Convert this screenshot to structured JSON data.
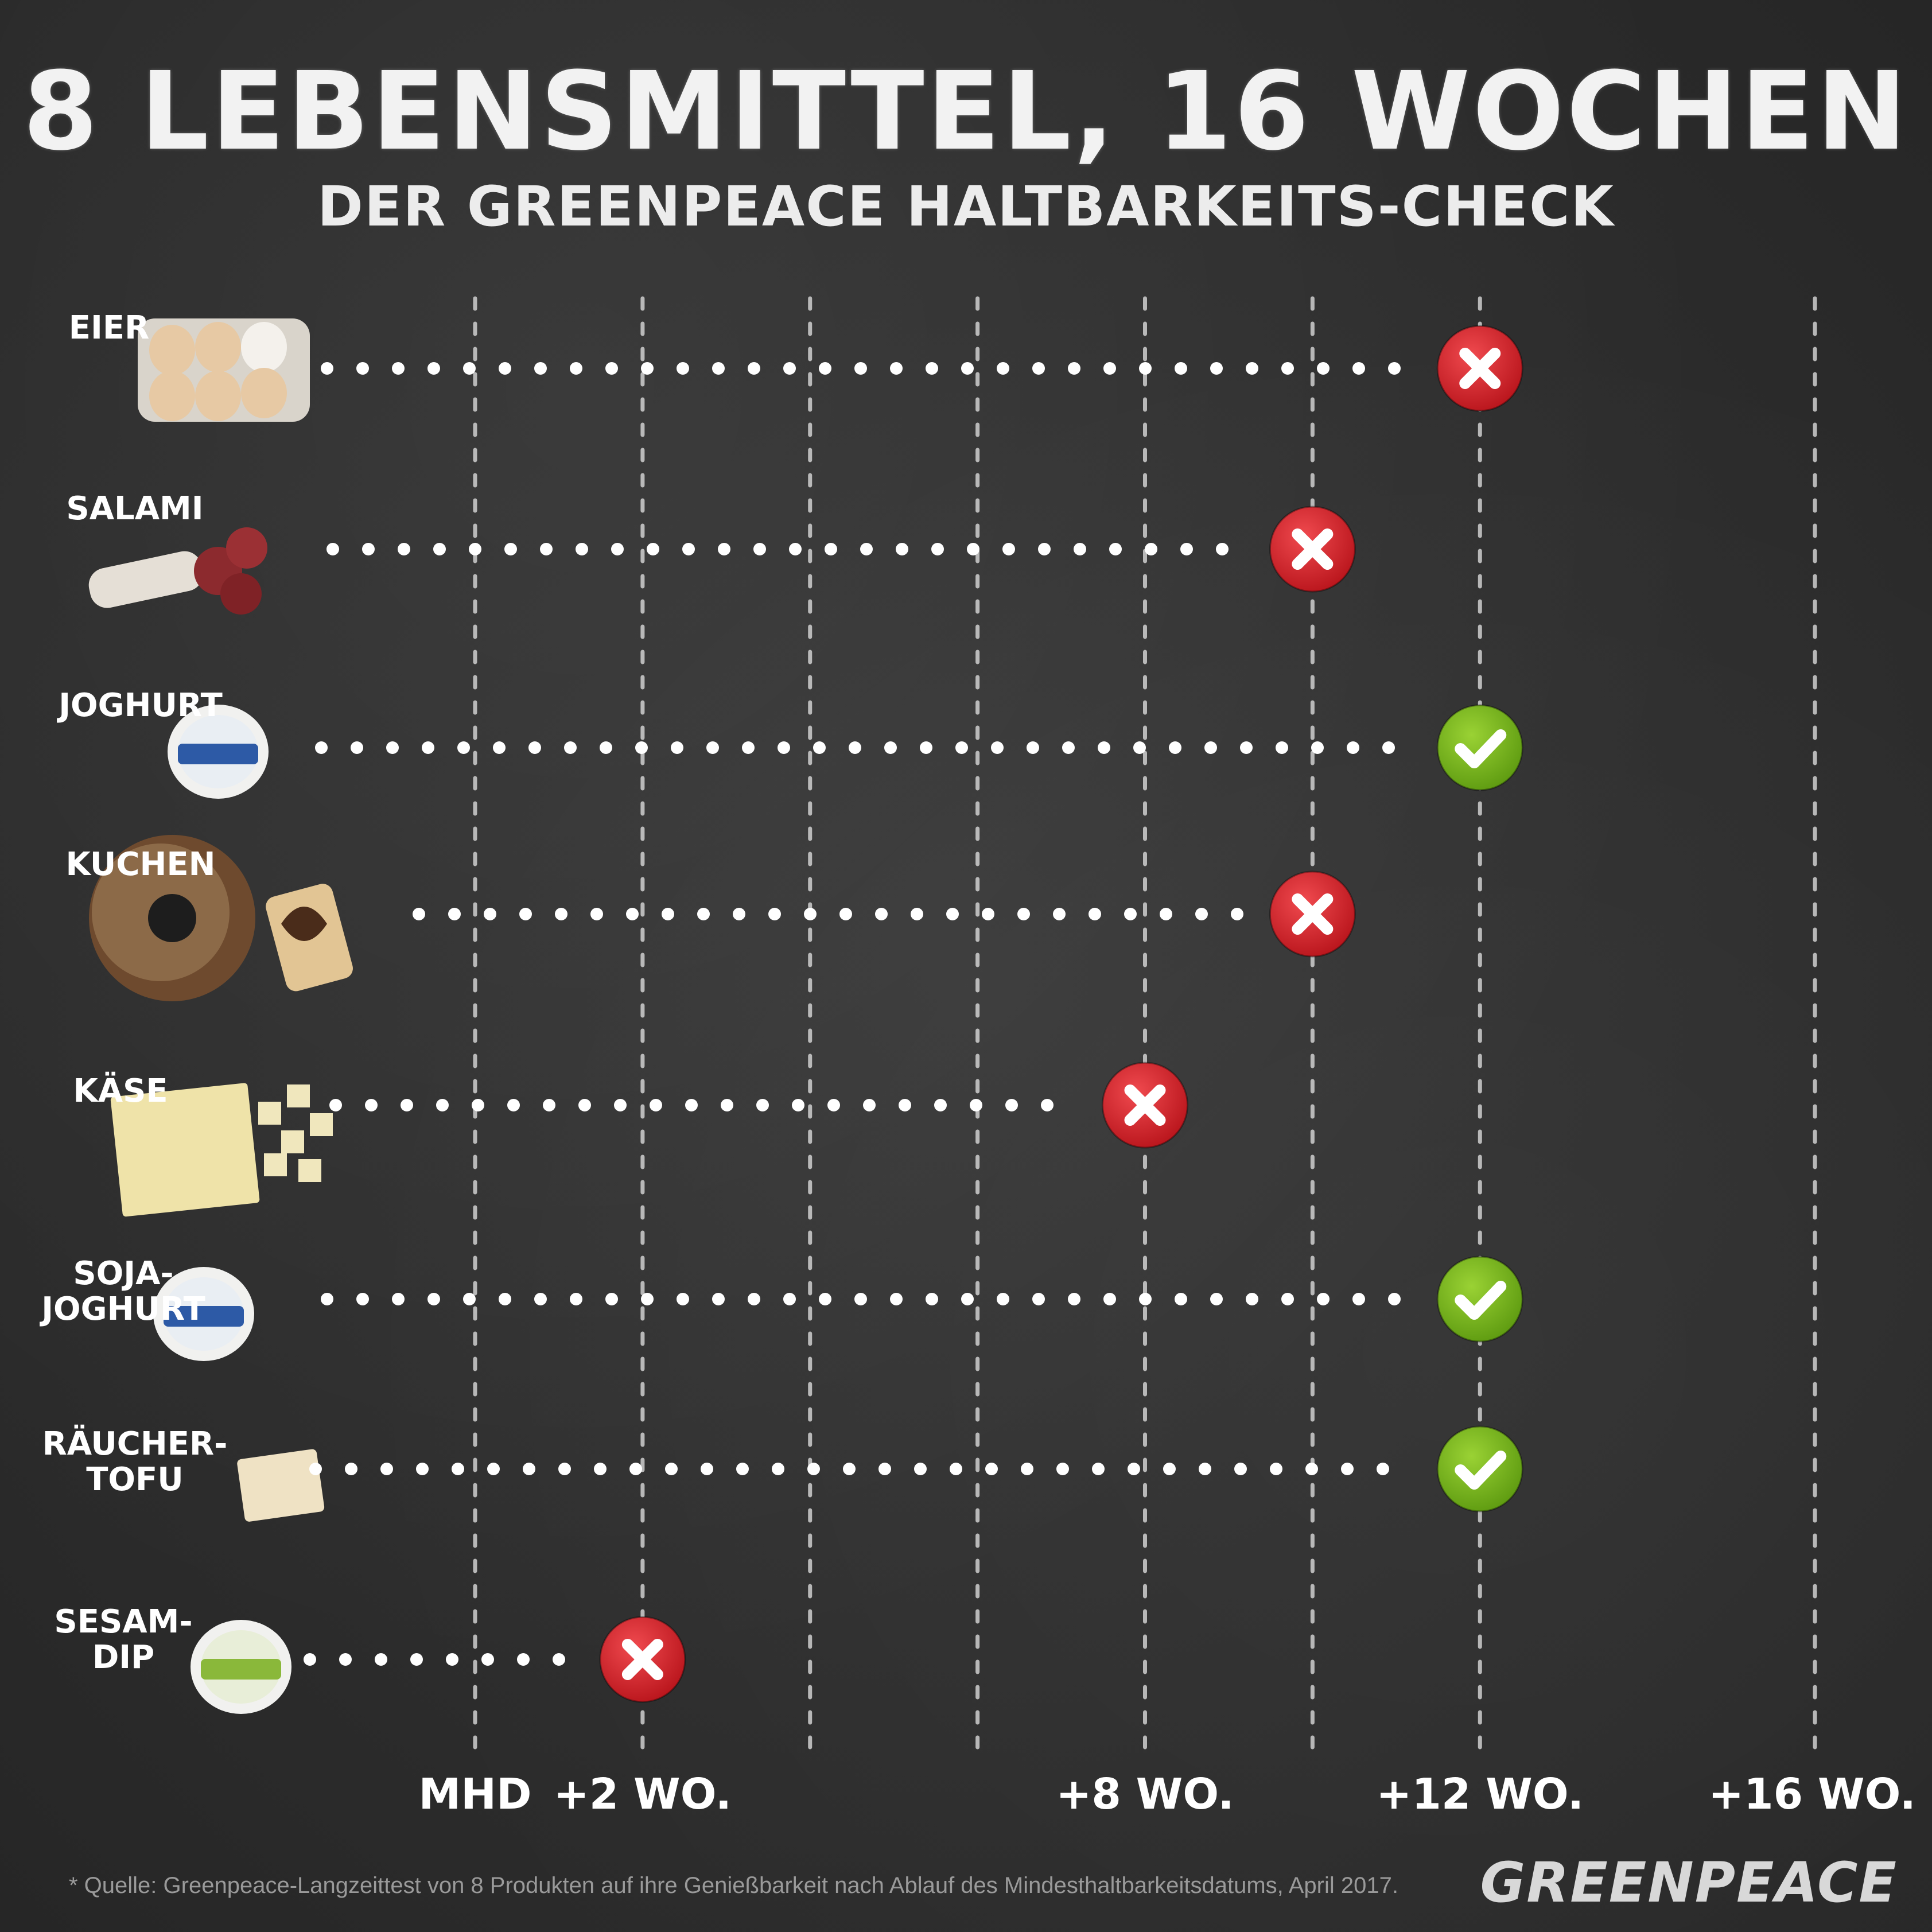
{
  "title": "8 LEBENSMITTEL, 16 WOCHEN",
  "subtitle": "DER GREENPEACE HALTBARKEITS-CHECK",
  "chart_data": {
    "type": "scatter",
    "x_unit": "Wochen nach MHD",
    "xlim": [
      0,
      16
    ],
    "x_ticks": [
      {
        "value": 0,
        "label": "MHD"
      },
      {
        "value": 2,
        "label": "+2 WO."
      },
      {
        "value": 8,
        "label": "+8 WO."
      },
      {
        "value": 12,
        "label": "+12 WO."
      },
      {
        "value": 16,
        "label": "+16 WO."
      }
    ],
    "gridlines_weeks": [
      0,
      2,
      4,
      6,
      8,
      10,
      12,
      16
    ],
    "grid": true,
    "rows": [
      {
        "label_lines": [
          "EIER"
        ],
        "weeks": 12,
        "result": "x"
      },
      {
        "label_lines": [
          "SALAMI"
        ],
        "weeks": 10,
        "result": "x"
      },
      {
        "label_lines": [
          "JOGHURT"
        ],
        "weeks": 12,
        "result": "check"
      },
      {
        "label_lines": [
          "KUCHEN"
        ],
        "weeks": 10,
        "result": "x"
      },
      {
        "label_lines": [
          "KÄSE"
        ],
        "weeks": 8,
        "result": "x"
      },
      {
        "label_lines": [
          "SOJA-",
          "JOGHURT"
        ],
        "weeks": 12,
        "result": "check"
      },
      {
        "label_lines": [
          "RÄUCHER-",
          "TOFU"
        ],
        "weeks": 12,
        "result": "check"
      },
      {
        "label_lines": [
          "SESAM-",
          "DIP"
        ],
        "weeks": 2,
        "result": "x"
      }
    ],
    "colors": {
      "fail": "#d8262c",
      "pass": "#7ab51d",
      "dots": "#ffffff",
      "grid": "#d9d9d9"
    }
  },
  "footnote": "* Quelle: Greenpeace-Langzeittest von 8 Produkten auf ihre Genießbarkeit nach Ablauf des Mindesthaltbarkeitsdatums, April 2017.",
  "logo": "GREENPEACE"
}
